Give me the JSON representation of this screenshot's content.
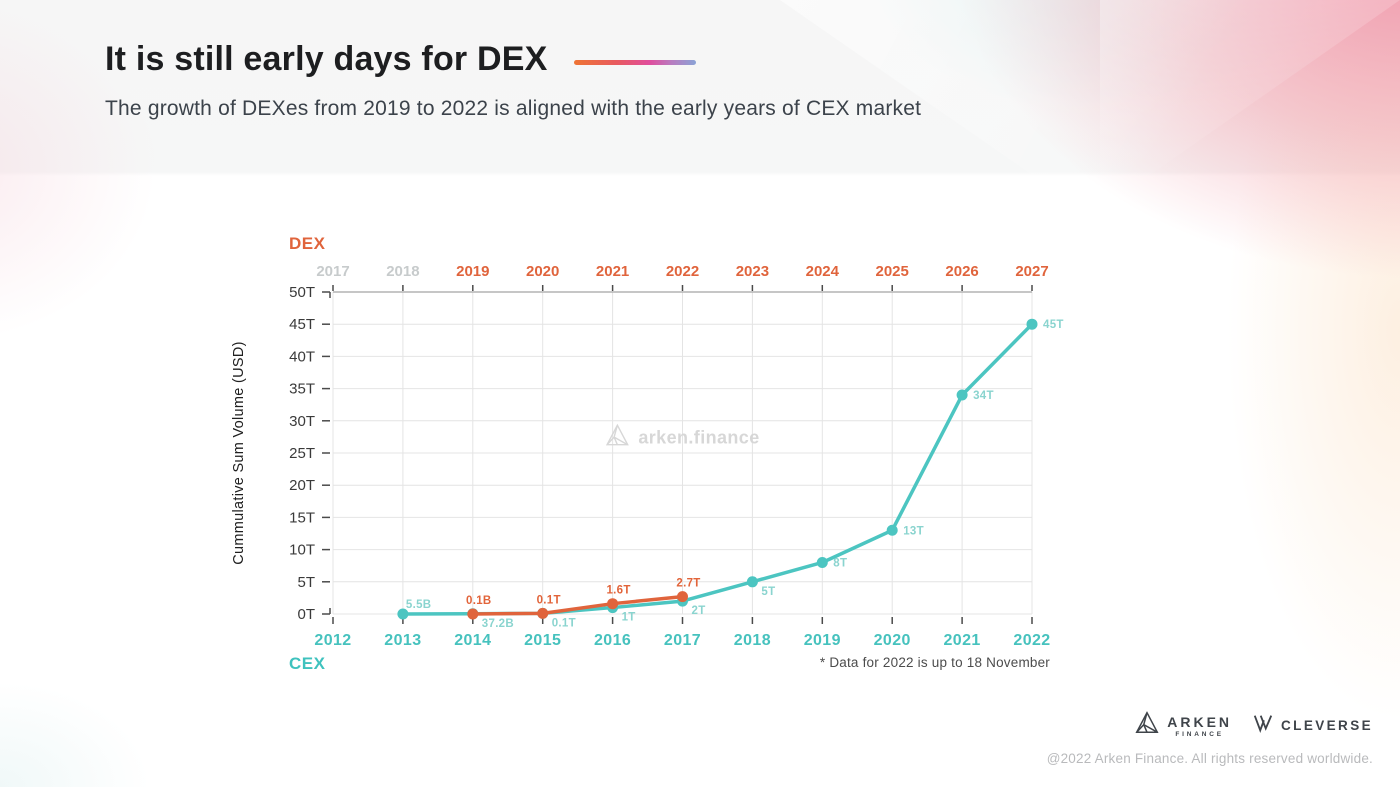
{
  "slide": {
    "title": "It is still early days for DEX",
    "subtitle": "The growth of DEXes from 2019 to 2022 is aligned with the early years of CEX market",
    "footnote": "* Data for 2022 is up to 18 November",
    "watermark_text": "arken.finance",
    "copyright": "@2022 Arken Finance. All rights reserved worldwide.",
    "accent_gradient": [
      "#ee7434",
      "#e04d9d",
      "#8aa3d6"
    ]
  },
  "footer": {
    "arken_name": "ARKEN",
    "arken_sub": "FINANCE",
    "cleverse_name": "CLEVERSE"
  },
  "chart_data": {
    "type": "line",
    "title": "",
    "ylabel": "Cummulative Sum Volume (USD)",
    "ylim": [
      0,
      50
    ],
    "grid": true,
    "y_ticks": [
      {
        "v": 0,
        "label": "0T"
      },
      {
        "v": 5,
        "label": "5T"
      },
      {
        "v": 10,
        "label": "10T"
      },
      {
        "v": 15,
        "label": "15T"
      },
      {
        "v": 20,
        "label": "20T"
      },
      {
        "v": 25,
        "label": "25T"
      },
      {
        "v": 30,
        "label": "30T"
      },
      {
        "v": 35,
        "label": "35T"
      },
      {
        "v": 40,
        "label": "40T"
      },
      {
        "v": 45,
        "label": "45T"
      },
      {
        "v": 50,
        "label": "50T"
      }
    ],
    "top_axis": {
      "label": "DEX",
      "color": "#e0643c",
      "muted_color": "#c7cbcc",
      "years": [
        "2017",
        "2018",
        "2019",
        "2020",
        "2021",
        "2022",
        "2023",
        "2024",
        "2025",
        "2026",
        "2027"
      ],
      "muted_years": [
        "2017",
        "2018"
      ]
    },
    "bottom_axis": {
      "label": "CEX",
      "color": "#46c2be",
      "years": [
        "2012",
        "2013",
        "2014",
        "2015",
        "2016",
        "2017",
        "2018",
        "2019",
        "2020",
        "2021",
        "2022"
      ]
    },
    "series": [
      {
        "name": "CEX",
        "color": "#4cc5c1",
        "label_color": "#8ad4cf",
        "points": [
          {
            "x_year": "2013",
            "value_t": 0.0055,
            "label": "5.5B",
            "label_pos": "above-right"
          },
          {
            "x_year": "2014",
            "value_t": 0.0372,
            "label": "37.2B",
            "label_pos": "below-right"
          },
          {
            "x_year": "2015",
            "value_t": 0.1,
            "label": "0.1T",
            "label_pos": "below-right"
          },
          {
            "x_year": "2016",
            "value_t": 1,
            "label": "1T",
            "label_pos": "below-right"
          },
          {
            "x_year": "2017",
            "value_t": 2,
            "label": "2T",
            "label_pos": "below-right"
          },
          {
            "x_year": "2018",
            "value_t": 5,
            "label": "5T",
            "label_pos": "below-right"
          },
          {
            "x_year": "2019",
            "value_t": 8,
            "label": "8T",
            "label_pos": "right"
          },
          {
            "x_year": "2020",
            "value_t": 13,
            "label": "13T",
            "label_pos": "right"
          },
          {
            "x_year": "2021",
            "value_t": 34,
            "label": "34T",
            "label_pos": "right"
          },
          {
            "x_year": "2022",
            "value_t": 45,
            "label": "45T",
            "label_pos": "right"
          }
        ]
      },
      {
        "name": "DEX",
        "color": "#e0643c",
        "label_color": "#e2643a",
        "points": [
          {
            "x_year": "2014",
            "dex_year": "2019",
            "value_t": 0.0001,
            "label": "0.1B",
            "label_pos": "above"
          },
          {
            "x_year": "2015",
            "dex_year": "2020",
            "value_t": 0.1,
            "label": "0.1T",
            "label_pos": "above"
          },
          {
            "x_year": "2016",
            "dex_year": "2021",
            "value_t": 1.6,
            "label": "1.6T",
            "label_pos": "above"
          },
          {
            "x_year": "2017",
            "dex_year": "2022",
            "value_t": 2.7,
            "label": "2.7T",
            "label_pos": "above"
          }
        ]
      }
    ]
  }
}
